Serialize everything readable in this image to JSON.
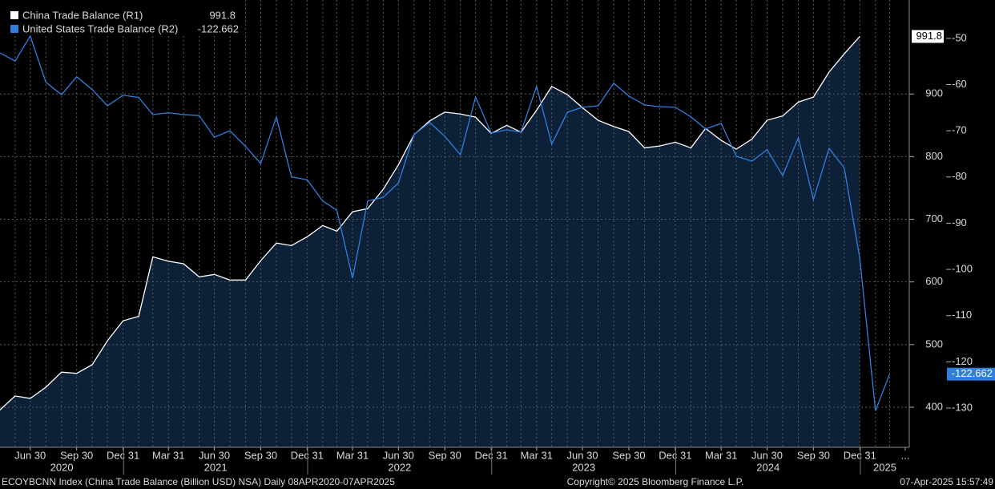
{
  "chart_data": {
    "type": "line",
    "x": [
      "2020-04-30",
      "2020-05-31",
      "2020-06-30",
      "2020-07-31",
      "2020-08-31",
      "2020-09-30",
      "2020-10-31",
      "2020-11-30",
      "2020-12-31",
      "2021-01-31",
      "2021-02-28",
      "2021-03-31",
      "2021-04-30",
      "2021-05-31",
      "2021-06-30",
      "2021-07-31",
      "2021-08-31",
      "2021-09-30",
      "2021-10-31",
      "2021-11-30",
      "2021-12-31",
      "2022-01-31",
      "2022-02-28",
      "2022-03-31",
      "2022-04-30",
      "2022-05-31",
      "2022-06-30",
      "2022-07-31",
      "2022-08-31",
      "2022-09-30",
      "2022-10-31",
      "2022-11-30",
      "2022-12-31",
      "2023-01-31",
      "2023-02-28",
      "2023-03-31",
      "2023-04-30",
      "2023-05-31",
      "2023-06-30",
      "2023-07-31",
      "2023-08-31",
      "2023-09-30",
      "2023-10-31",
      "2023-11-30",
      "2023-12-31",
      "2024-01-31",
      "2024-02-29",
      "2024-03-31",
      "2024-04-30",
      "2024-05-31",
      "2024-06-30",
      "2024-07-31",
      "2024-08-31",
      "2024-09-30",
      "2024-10-31",
      "2024-11-30",
      "2024-12-31",
      "2025-01-31",
      "2025-02-28"
    ],
    "series": [
      {
        "name": "China Trade Balance  (R1)",
        "color": "#ffffff",
        "area_color": "#0c2038",
        "axis": "y",
        "values": [
          395,
          418,
          414,
          432,
          456,
          454,
          468,
          506,
          538,
          545,
          640,
          633,
          629,
          608,
          612,
          603,
          603,
          634,
          662,
          658,
          672,
          690,
          681,
          712,
          717,
          748,
          787,
          835,
          857,
          871,
          868,
          863,
          837,
          850,
          839,
          874,
          912,
          899,
          878,
          858,
          848,
          840,
          814,
          817,
          823,
          814,
          845,
          826,
          812,
          828,
          858,
          865,
          887,
          895,
          935,
          964,
          991.8,
          null,
          null
        ]
      },
      {
        "name": "United States Trade Balance  (R2)",
        "color": "#2f7fe0",
        "axis": "y2",
        "values": [
          -53.1,
          -54.9,
          -49.5,
          -59.5,
          -62.2,
          -58.3,
          -61.1,
          -64.6,
          -62.3,
          -62.8,
          -66.5,
          -66.1,
          -66.5,
          -66.7,
          -71.4,
          -70.0,
          -73.4,
          -77.1,
          -67.0,
          -80.0,
          -80.6,
          -85.2,
          -87.2,
          -101.9,
          -85.2,
          -84.4,
          -81.3,
          -70.8,
          -68.2,
          -71.2,
          -75.2,
          -62.7,
          -70.5,
          -69.8,
          -70.3,
          -60.4,
          -72.9,
          -66.0,
          -64.9,
          -64.6,
          -59.7,
          -62.5,
          -64.4,
          -64.8,
          -64.9,
          -67.0,
          -69.6,
          -68.4,
          -75.5,
          -76.6,
          -74.1,
          -79.7,
          -71.5,
          -84.9,
          -73.8,
          -78.0,
          -97.7,
          -130.6,
          -122.662
        ]
      }
    ],
    "xlim": [
      "2020-05-01",
      "2025-04-08"
    ],
    "xticks": [
      {
        "value": "2020-06-30",
        "label": "Jun 30"
      },
      {
        "value": "2020-09-30",
        "label": "Sep 30"
      },
      {
        "value": "2020-12-31",
        "label": "Dec 31"
      },
      {
        "value": "2021-03-31",
        "label": "Mar 31"
      },
      {
        "value": "2021-06-30",
        "label": "Jun 30"
      },
      {
        "value": "2021-09-30",
        "label": "Sep 30"
      },
      {
        "value": "2021-12-31",
        "label": "Dec 31"
      },
      {
        "value": "2022-03-31",
        "label": "Mar 31"
      },
      {
        "value": "2022-06-30",
        "label": "Jun 30"
      },
      {
        "value": "2022-09-30",
        "label": "Sep 30"
      },
      {
        "value": "2022-12-31",
        "label": "Dec 31"
      },
      {
        "value": "2023-03-31",
        "label": "Mar 31"
      },
      {
        "value": "2023-06-30",
        "label": "Jun 30"
      },
      {
        "value": "2023-09-30",
        "label": "Sep 30"
      },
      {
        "value": "2023-12-31",
        "label": "Dec 31"
      },
      {
        "value": "2024-03-31",
        "label": "Mar 31"
      },
      {
        "value": "2024-06-30",
        "label": "Jun 30"
      },
      {
        "value": "2024-09-30",
        "label": "Sep 30"
      },
      {
        "value": "2024-12-31",
        "label": "Dec 31"
      },
      {
        "value": "2025-03-31",
        "label": "..."
      }
    ],
    "x_year_labels": [
      "2020",
      "2021",
      "2022",
      "2023",
      "2024",
      "2025"
    ],
    "ylim": [
      336,
      1050
    ],
    "yticks": [
      400,
      500,
      600,
      700,
      800,
      900
    ],
    "y2lim": [
      -138.5,
      -41.7
    ],
    "y2ticks": [
      -50,
      -60,
      -70,
      -80,
      -90,
      -100,
      -110,
      -120,
      -130
    ],
    "grid": true,
    "footer_left": "ECOYBCNN Index (China Trade Balance (Billion USD) NSA)  Daily 08APR2020-07APR2025",
    "footer_center": "Copyright© 2025 Bloomberg Finance L.P.",
    "footer_right": "07-Apr-2025 15:57:49"
  }
}
